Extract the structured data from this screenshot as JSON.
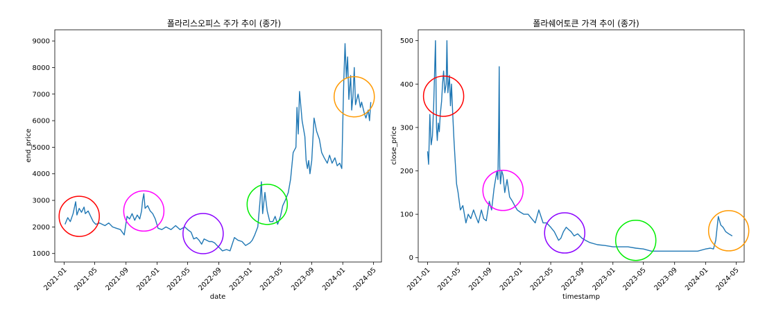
{
  "chart_data": [
    {
      "type": "line",
      "title": "폴라리스오피스 주가 추이 (종가)",
      "xlabel": "date",
      "ylabel": "end_price",
      "x_ticks": [
        "2021-01",
        "2021-05",
        "2021-09",
        "2022-01",
        "2022-05",
        "2022-09",
        "2023-01",
        "2023-05",
        "2023-09",
        "2024-01",
        "2024-05"
      ],
      "y_ticks": [
        1000,
        2000,
        3000,
        4000,
        5000,
        6000,
        7000,
        8000,
        9000
      ],
      "xlim": [
        "2020-11-25",
        "2024-06-01"
      ],
      "ylim": [
        680,
        9420
      ],
      "grid": false,
      "line_color": "#1f77b4",
      "series": [
        {
          "x": [
            "2021-01-04",
            "2021-01-15",
            "2021-01-25",
            "2021-02-05",
            "2021-02-15",
            "2021-02-20",
            "2021-03-01",
            "2021-03-10",
            "2021-03-20",
            "2021-03-25",
            "2021-04-05",
            "2021-04-15",
            "2021-04-25",
            "2021-05-05",
            "2021-05-20",
            "2021-06-10",
            "2021-06-25",
            "2021-07-10",
            "2021-07-25",
            "2021-08-10",
            "2021-08-25",
            "2021-09-05",
            "2021-09-15",
            "2021-09-25",
            "2021-10-05",
            "2021-10-15",
            "2021-10-25",
            "2021-11-01",
            "2021-11-05",
            "2021-11-10",
            "2021-11-15",
            "2021-11-25",
            "2021-12-05",
            "2021-12-15",
            "2021-12-25",
            "2022-01-05",
            "2022-01-20",
            "2022-02-05",
            "2022-02-25",
            "2022-03-15",
            "2022-04-01",
            "2022-04-20",
            "2022-05-01",
            "2022-05-15",
            "2022-05-25",
            "2022-06-05",
            "2022-06-15",
            "2022-06-25",
            "2022-07-05",
            "2022-07-15",
            "2022-07-25",
            "2022-08-05",
            "2022-08-15",
            "2022-08-25",
            "2022-09-05",
            "2022-09-15",
            "2022-10-01",
            "2022-10-15",
            "2022-11-01",
            "2022-11-15",
            "2022-12-01",
            "2022-12-15",
            "2023-01-01",
            "2023-01-10",
            "2023-01-20",
            "2023-02-01",
            "2023-02-10",
            "2023-02-15",
            "2023-02-20",
            "2023-03-01",
            "2023-03-10",
            "2023-03-20",
            "2023-04-01",
            "2023-04-10",
            "2023-04-20",
            "2023-05-01",
            "2023-05-10",
            "2023-05-20",
            "2023-06-01",
            "2023-06-10",
            "2023-06-20",
            "2023-07-01",
            "2023-07-05",
            "2023-07-10",
            "2023-07-15",
            "2023-07-25",
            "2023-08-05",
            "2023-08-10",
            "2023-08-15",
            "2023-08-20",
            "2023-08-25",
            "2023-09-01",
            "2023-09-10",
            "2023-09-20",
            "2023-10-01",
            "2023-10-10",
            "2023-10-20",
            "2023-11-01",
            "2023-11-10",
            "2023-11-20",
            "2023-12-01",
            "2023-12-10",
            "2023-12-20",
            "2023-12-28",
            "2024-01-02",
            "2024-01-05",
            "2024-01-10",
            "2024-01-15",
            "2024-01-20",
            "2024-01-25",
            "2024-02-01",
            "2024-02-05",
            "2024-02-10",
            "2024-02-15",
            "2024-02-20",
            "2024-03-01",
            "2024-03-05",
            "2024-03-10",
            "2024-03-15",
            "2024-03-25",
            "2024-04-01",
            "2024-04-10",
            "2024-04-15",
            "2024-04-20"
          ],
          "y": [
            2100,
            2350,
            2200,
            2500,
            2950,
            2450,
            2700,
            2550,
            2750,
            2500,
            2600,
            2400,
            2200,
            2100,
            2150,
            2050,
            2150,
            2000,
            1950,
            1900,
            1700,
            2400,
            2300,
            2500,
            2250,
            2450,
            2300,
            2600,
            3000,
            3250,
            2700,
            2800,
            2600,
            2500,
            2300,
            1950,
            1900,
            2000,
            1900,
            2050,
            1900,
            2000,
            1900,
            1800,
            1550,
            1600,
            1500,
            1350,
            1550,
            1500,
            1450,
            1450,
            1400,
            1300,
            1200,
            1100,
            1150,
            1100,
            1600,
            1500,
            1450,
            1300,
            1400,
            1500,
            1700,
            2000,
            3000,
            3700,
            2500,
            3300,
            2600,
            2200,
            2200,
            2400,
            2100,
            2400,
            2800,
            3000,
            3300,
            3800,
            4800,
            5000,
            6500,
            5500,
            7100,
            6000,
            5400,
            4500,
            4200,
            4500,
            4000,
            4500,
            6100,
            5600,
            5300,
            4800,
            4600,
            4400,
            4700,
            4400,
            4600,
            4300,
            4400,
            4200,
            6300,
            7500,
            8900,
            7600,
            8400,
            6800,
            7700,
            6400,
            6900,
            8000,
            6600,
            7000,
            6800,
            6500,
            6700,
            6300,
            6100,
            6400,
            6000,
            6700
          ]
        }
      ]
    },
    {
      "type": "line",
      "title": "폴라쉐어토큰 가격 추이 (종가)",
      "xlabel": "timestamp",
      "ylabel": "close_price",
      "x_ticks": [
        "2021-01",
        "2021-05",
        "2021-09",
        "2022-01",
        "2022-05",
        "2022-09",
        "2023-01",
        "2023-05",
        "2023-09",
        "2024-01",
        "2024-05"
      ],
      "y_ticks": [
        0,
        100,
        200,
        300,
        400,
        500
      ],
      "xlim": [
        "2020-11-25",
        "2024-06-01"
      ],
      "ylim": [
        -10,
        525
      ],
      "grid": false,
      "line_color": "#1f77b4",
      "series": [
        {
          "x": [
            "2021-01-01",
            "2021-01-05",
            "2021-01-10",
            "2021-01-15",
            "2021-01-20",
            "2021-01-25",
            "2021-02-01",
            "2021-02-05",
            "2021-02-08",
            "2021-02-12",
            "2021-02-16",
            "2021-02-20",
            "2021-02-25",
            "2021-03-01",
            "2021-03-05",
            "2021-03-10",
            "2021-03-15",
            "2021-03-18",
            "2021-03-22",
            "2021-03-28",
            "2021-04-01",
            "2021-04-05",
            "2021-04-10",
            "2021-04-15",
            "2021-04-20",
            "2021-04-25",
            "2021-05-01",
            "2021-05-10",
            "2021-05-20",
            "2021-06-01",
            "2021-06-10",
            "2021-06-20",
            "2021-07-01",
            "2021-07-10",
            "2021-07-20",
            "2021-08-01",
            "2021-08-10",
            "2021-08-20",
            "2021-09-01",
            "2021-09-10",
            "2021-09-20",
            "2021-10-01",
            "2021-10-05",
            "2021-10-08",
            "2021-10-10",
            "2021-10-12",
            "2021-10-15",
            "2021-10-20",
            "2021-10-25",
            "2021-11-01",
            "2021-11-10",
            "2021-11-20",
            "2021-12-01",
            "2021-12-10",
            "2021-12-20",
            "2022-01-01",
            "2022-01-15",
            "2022-02-01",
            "2022-02-15",
            "2022-03-01",
            "2022-03-15",
            "2022-04-01",
            "2022-04-15",
            "2022-05-01",
            "2022-05-15",
            "2022-06-01",
            "2022-06-10",
            "2022-06-20",
            "2022-07-01",
            "2022-07-10",
            "2022-07-20",
            "2022-08-01",
            "2022-08-15",
            "2022-09-01",
            "2022-09-15",
            "2022-10-01",
            "2022-11-01",
            "2022-12-01",
            "2023-01-01",
            "2023-02-01",
            "2023-03-01",
            "2023-04-01",
            "2023-05-01",
            "2023-06-01",
            "2023-07-01",
            "2023-08-01",
            "2023-09-01",
            "2023-10-01",
            "2023-11-01",
            "2023-12-01",
            "2024-01-01",
            "2024-01-20",
            "2024-02-01",
            "2024-02-10",
            "2024-02-20",
            "2024-03-01",
            "2024-03-10",
            "2024-03-20",
            "2024-04-01",
            "2024-04-15"
          ],
          "y": [
            245,
            215,
            330,
            260,
            280,
            350,
            500,
            300,
            270,
            310,
            290,
            330,
            360,
            400,
            430,
            380,
            400,
            500,
            380,
            420,
            350,
            400,
            330,
            270,
            220,
            170,
            150,
            110,
            120,
            80,
            100,
            90,
            110,
            95,
            80,
            110,
            90,
            85,
            130,
            110,
            160,
            200,
            180,
            300,
            440,
            210,
            170,
            200,
            190,
            150,
            180,
            140,
            130,
            120,
            110,
            105,
            100,
            100,
            90,
            80,
            110,
            80,
            80,
            70,
            60,
            40,
            45,
            60,
            70,
            65,
            60,
            50,
            55,
            45,
            40,
            35,
            30,
            28,
            25,
            25,
            25,
            22,
            20,
            15,
            15,
            15,
            15,
            15,
            15,
            15,
            20,
            22,
            20,
            40,
            95,
            75,
            70,
            60,
            55,
            50
          ]
        }
      ]
    }
  ],
  "annotations": {
    "left": [
      {
        "color": "#ff0000",
        "x": "2021-03-01",
        "y": 2400
      },
      {
        "color": "#ff00ff",
        "x": "2021-11-10",
        "y": 2600
      },
      {
        "color": "#8b00ff",
        "x": "2022-07-01",
        "y": 1750
      },
      {
        "color": "#00ee00",
        "x": "2023-03-10",
        "y": 2850
      },
      {
        "color": "#ff9900",
        "x": "2024-02-15",
        "y": 6900
      }
    ],
    "right": [
      {
        "color": "#ff0000",
        "x": "2021-03-05",
        "y": 372
      },
      {
        "color": "#ff00ff",
        "x": "2021-10-25",
        "y": 155
      },
      {
        "color": "#8b00ff",
        "x": "2022-06-25",
        "y": 57
      },
      {
        "color": "#00ee00",
        "x": "2023-04-01",
        "y": 40
      },
      {
        "color": "#ff9900",
        "x": "2024-04-01",
        "y": 62
      }
    ]
  }
}
